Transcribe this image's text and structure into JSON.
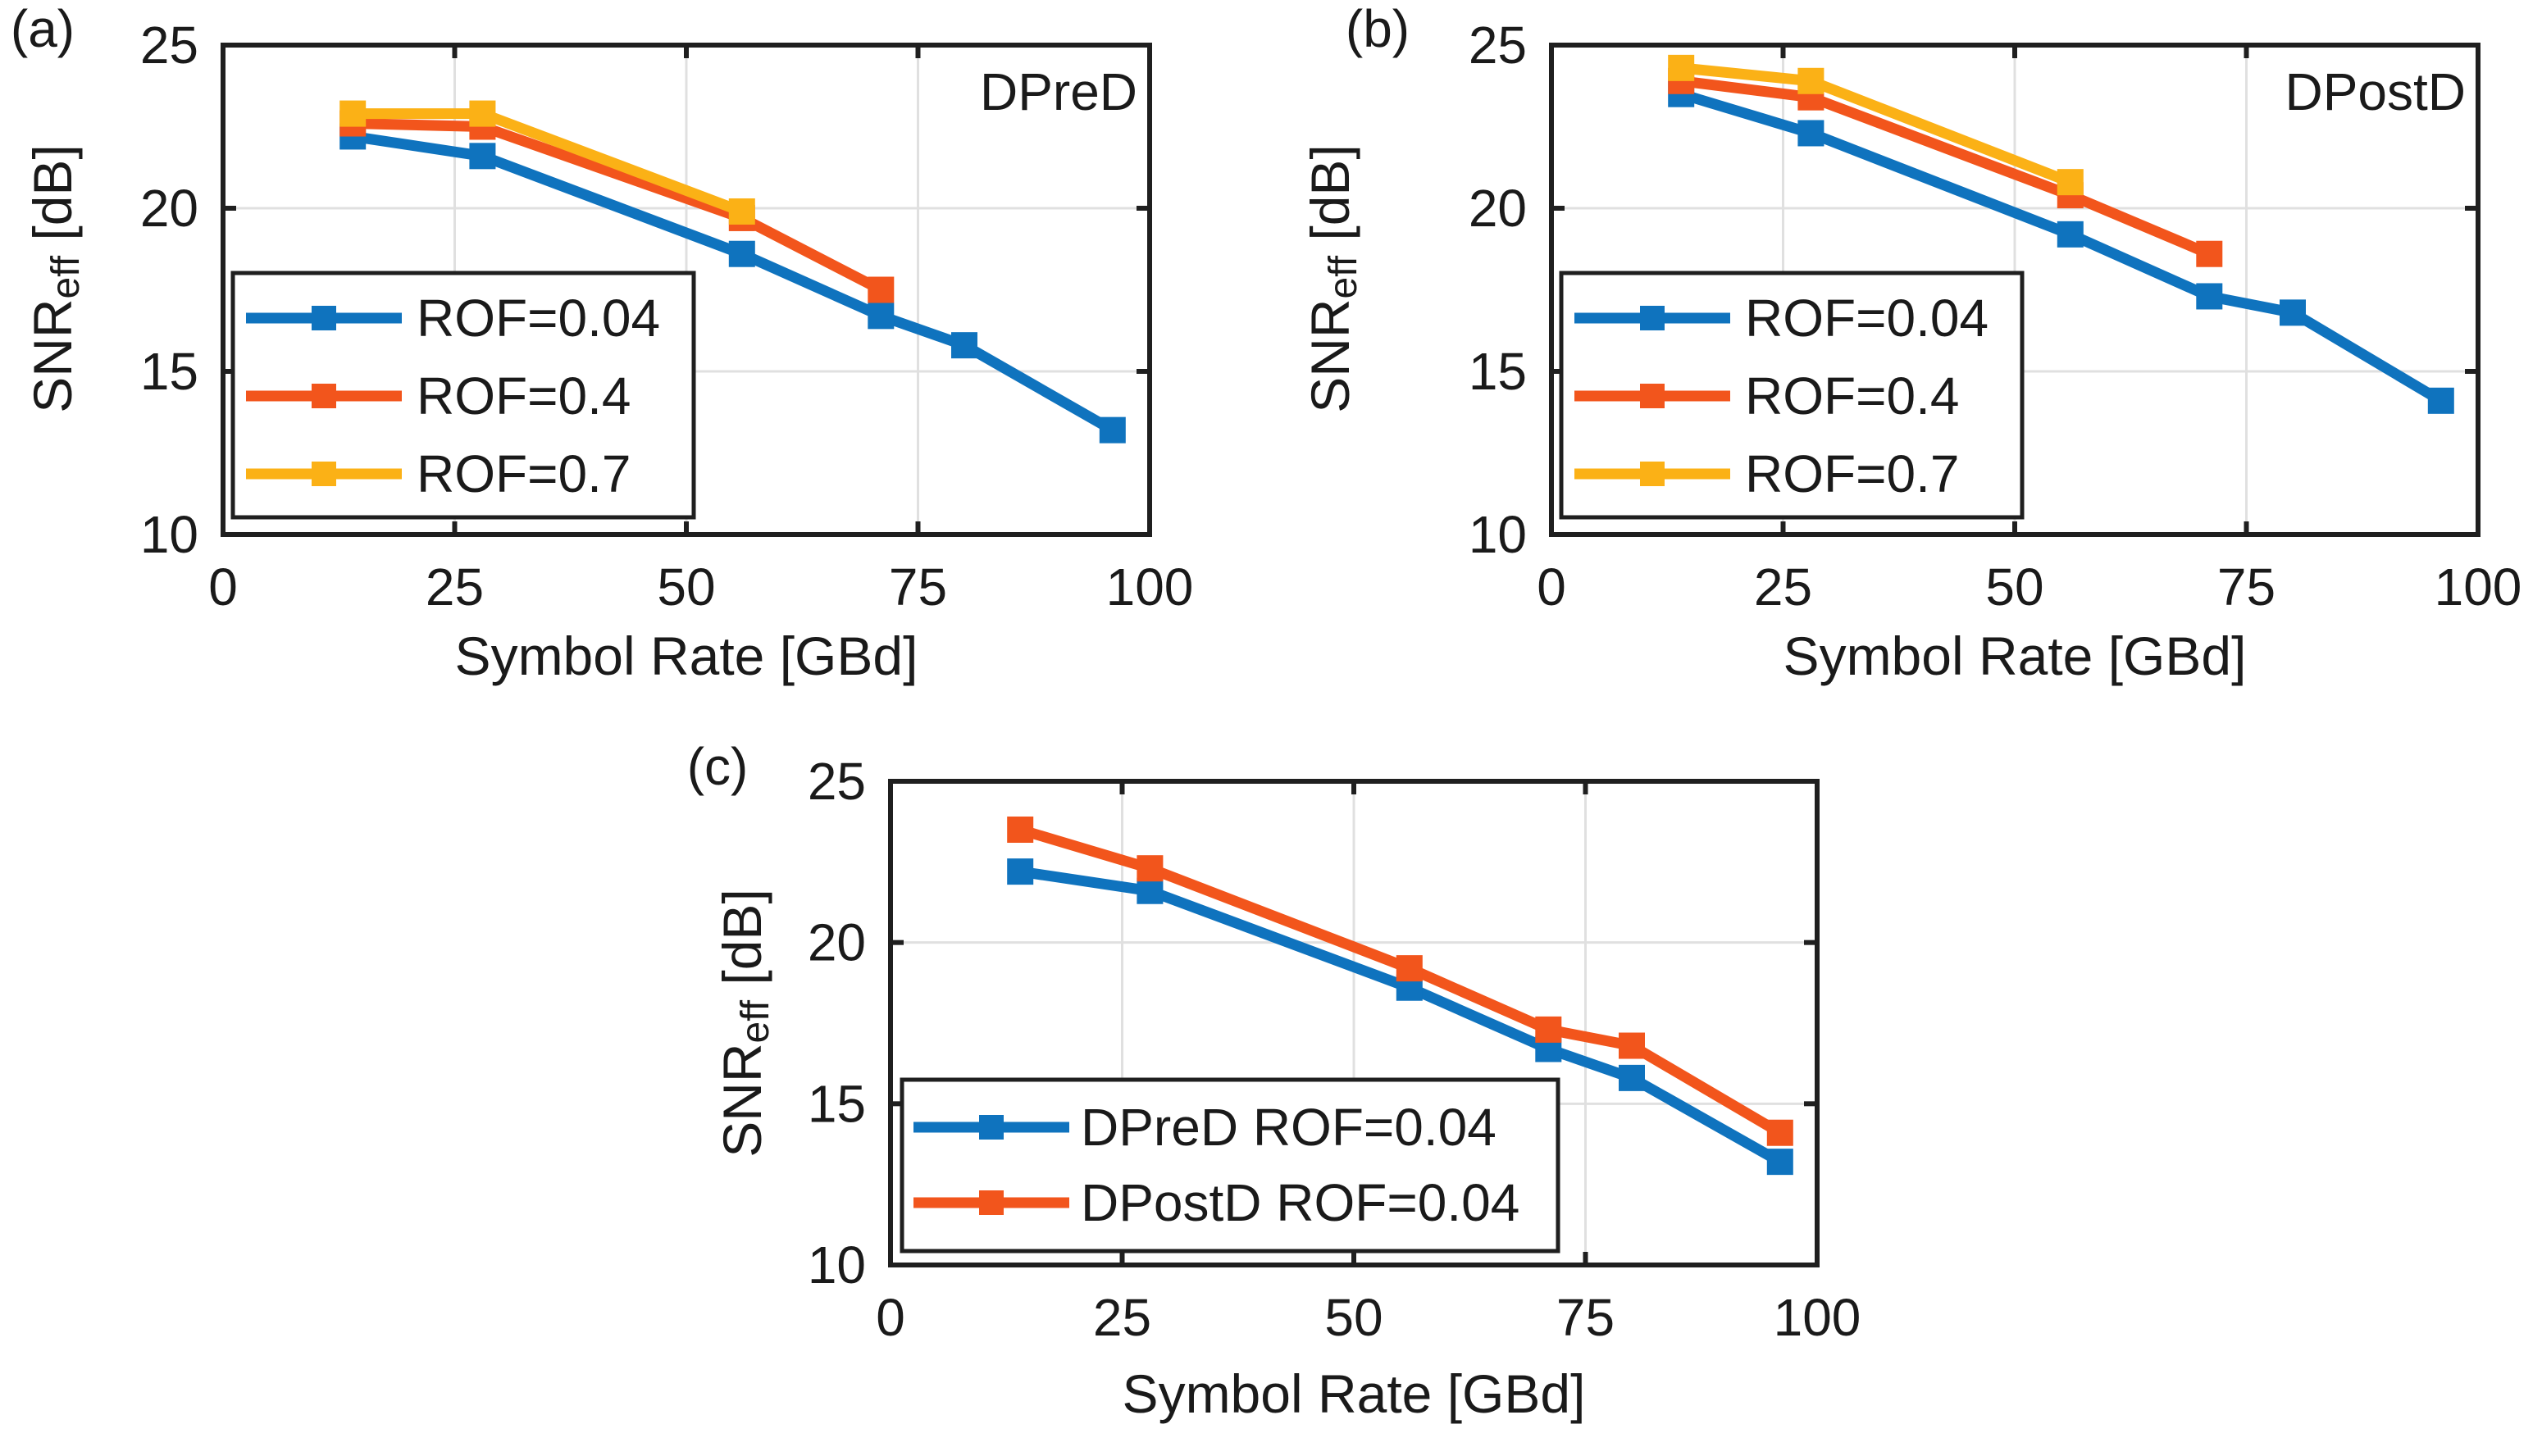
{
  "figure": {
    "background": "#FFFFFF",
    "axis_color": "#1F1F1F",
    "grid_color": "#E0E0E0",
    "text_color": "#1A1A1A",
    "legend_background": "#FFFFFF"
  },
  "chart_data": [
    {
      "type": "line",
      "panel_label": "(a)",
      "title": "DPreD",
      "xlabel": "Symbol Rate [GBd]",
      "ylabel": {
        "main": "SNR",
        "sub": "eff",
        "unit": " [dB]"
      },
      "xlim": [
        0,
        100
      ],
      "ylim": [
        10,
        25
      ],
      "xticks": [
        0,
        25,
        50,
        75,
        100
      ],
      "yticks": [
        10,
        15,
        20,
        25
      ],
      "grid": true,
      "legend_position": "lower-left",
      "series": [
        {
          "name": "ROF=0.04",
          "color": "#0F73BE",
          "marker": "square",
          "x": [
            14,
            28,
            56,
            71,
            80,
            96
          ],
          "y": [
            22.2,
            21.6,
            18.6,
            16.7,
            15.8,
            13.2
          ]
        },
        {
          "name": "ROF=0.4",
          "color": "#F2551C",
          "marker": "square",
          "x": [
            14,
            28,
            56,
            71
          ],
          "y": [
            22.6,
            22.5,
            19.7,
            17.5
          ]
        },
        {
          "name": "ROF=0.7",
          "color": "#FBB116",
          "marker": "square",
          "x": [
            14,
            28,
            56
          ],
          "y": [
            22.9,
            22.9,
            19.9
          ]
        }
      ]
    },
    {
      "type": "line",
      "panel_label": "(b)",
      "title": "DPostD",
      "xlabel": "Symbol Rate [GBd]",
      "ylabel": {
        "main": "SNR",
        "sub": "eff",
        "unit": " [dB]"
      },
      "xlim": [
        0,
        100
      ],
      "ylim": [
        10,
        25
      ],
      "xticks": [
        0,
        25,
        50,
        75,
        100
      ],
      "yticks": [
        10,
        15,
        20,
        25
      ],
      "grid": true,
      "legend_position": "lower-left",
      "series": [
        {
          "name": "ROF=0.04",
          "color": "#0F73BE",
          "marker": "square",
          "x": [
            14,
            28,
            56,
            71,
            80,
            96
          ],
          "y": [
            23.5,
            22.3,
            19.2,
            17.3,
            16.8,
            14.1
          ]
        },
        {
          "name": "ROF=0.4",
          "color": "#F2551C",
          "marker": "square",
          "x": [
            14,
            28,
            56,
            71
          ],
          "y": [
            23.9,
            23.4,
            20.4,
            18.6
          ]
        },
        {
          "name": "ROF=0.7",
          "color": "#FBB116",
          "marker": "square",
          "x": [
            14,
            28,
            56
          ],
          "y": [
            24.3,
            23.9,
            20.8
          ]
        }
      ]
    },
    {
      "type": "line",
      "panel_label": "(c)",
      "title": "",
      "xlabel": "Symbol Rate [GBd]",
      "ylabel": {
        "main": "SNR",
        "sub": "eff",
        "unit": " [dB]"
      },
      "xlim": [
        0,
        100
      ],
      "ylim": [
        10,
        25
      ],
      "xticks": [
        0,
        25,
        50,
        75,
        100
      ],
      "yticks": [
        10,
        15,
        20,
        25
      ],
      "grid": true,
      "legend_position": "lower-left",
      "series": [
        {
          "name": "DPreD ROF=0.04",
          "color": "#0F73BE",
          "marker": "square",
          "x": [
            14,
            28,
            56,
            71,
            80,
            96
          ],
          "y": [
            22.2,
            21.6,
            18.6,
            16.7,
            15.8,
            13.2
          ]
        },
        {
          "name": "DPostD ROF=0.04",
          "color": "#F2551C",
          "marker": "square",
          "x": [
            14,
            28,
            56,
            71,
            80,
            96
          ],
          "y": [
            23.5,
            22.3,
            19.2,
            17.3,
            16.8,
            14.1
          ]
        }
      ]
    }
  ]
}
